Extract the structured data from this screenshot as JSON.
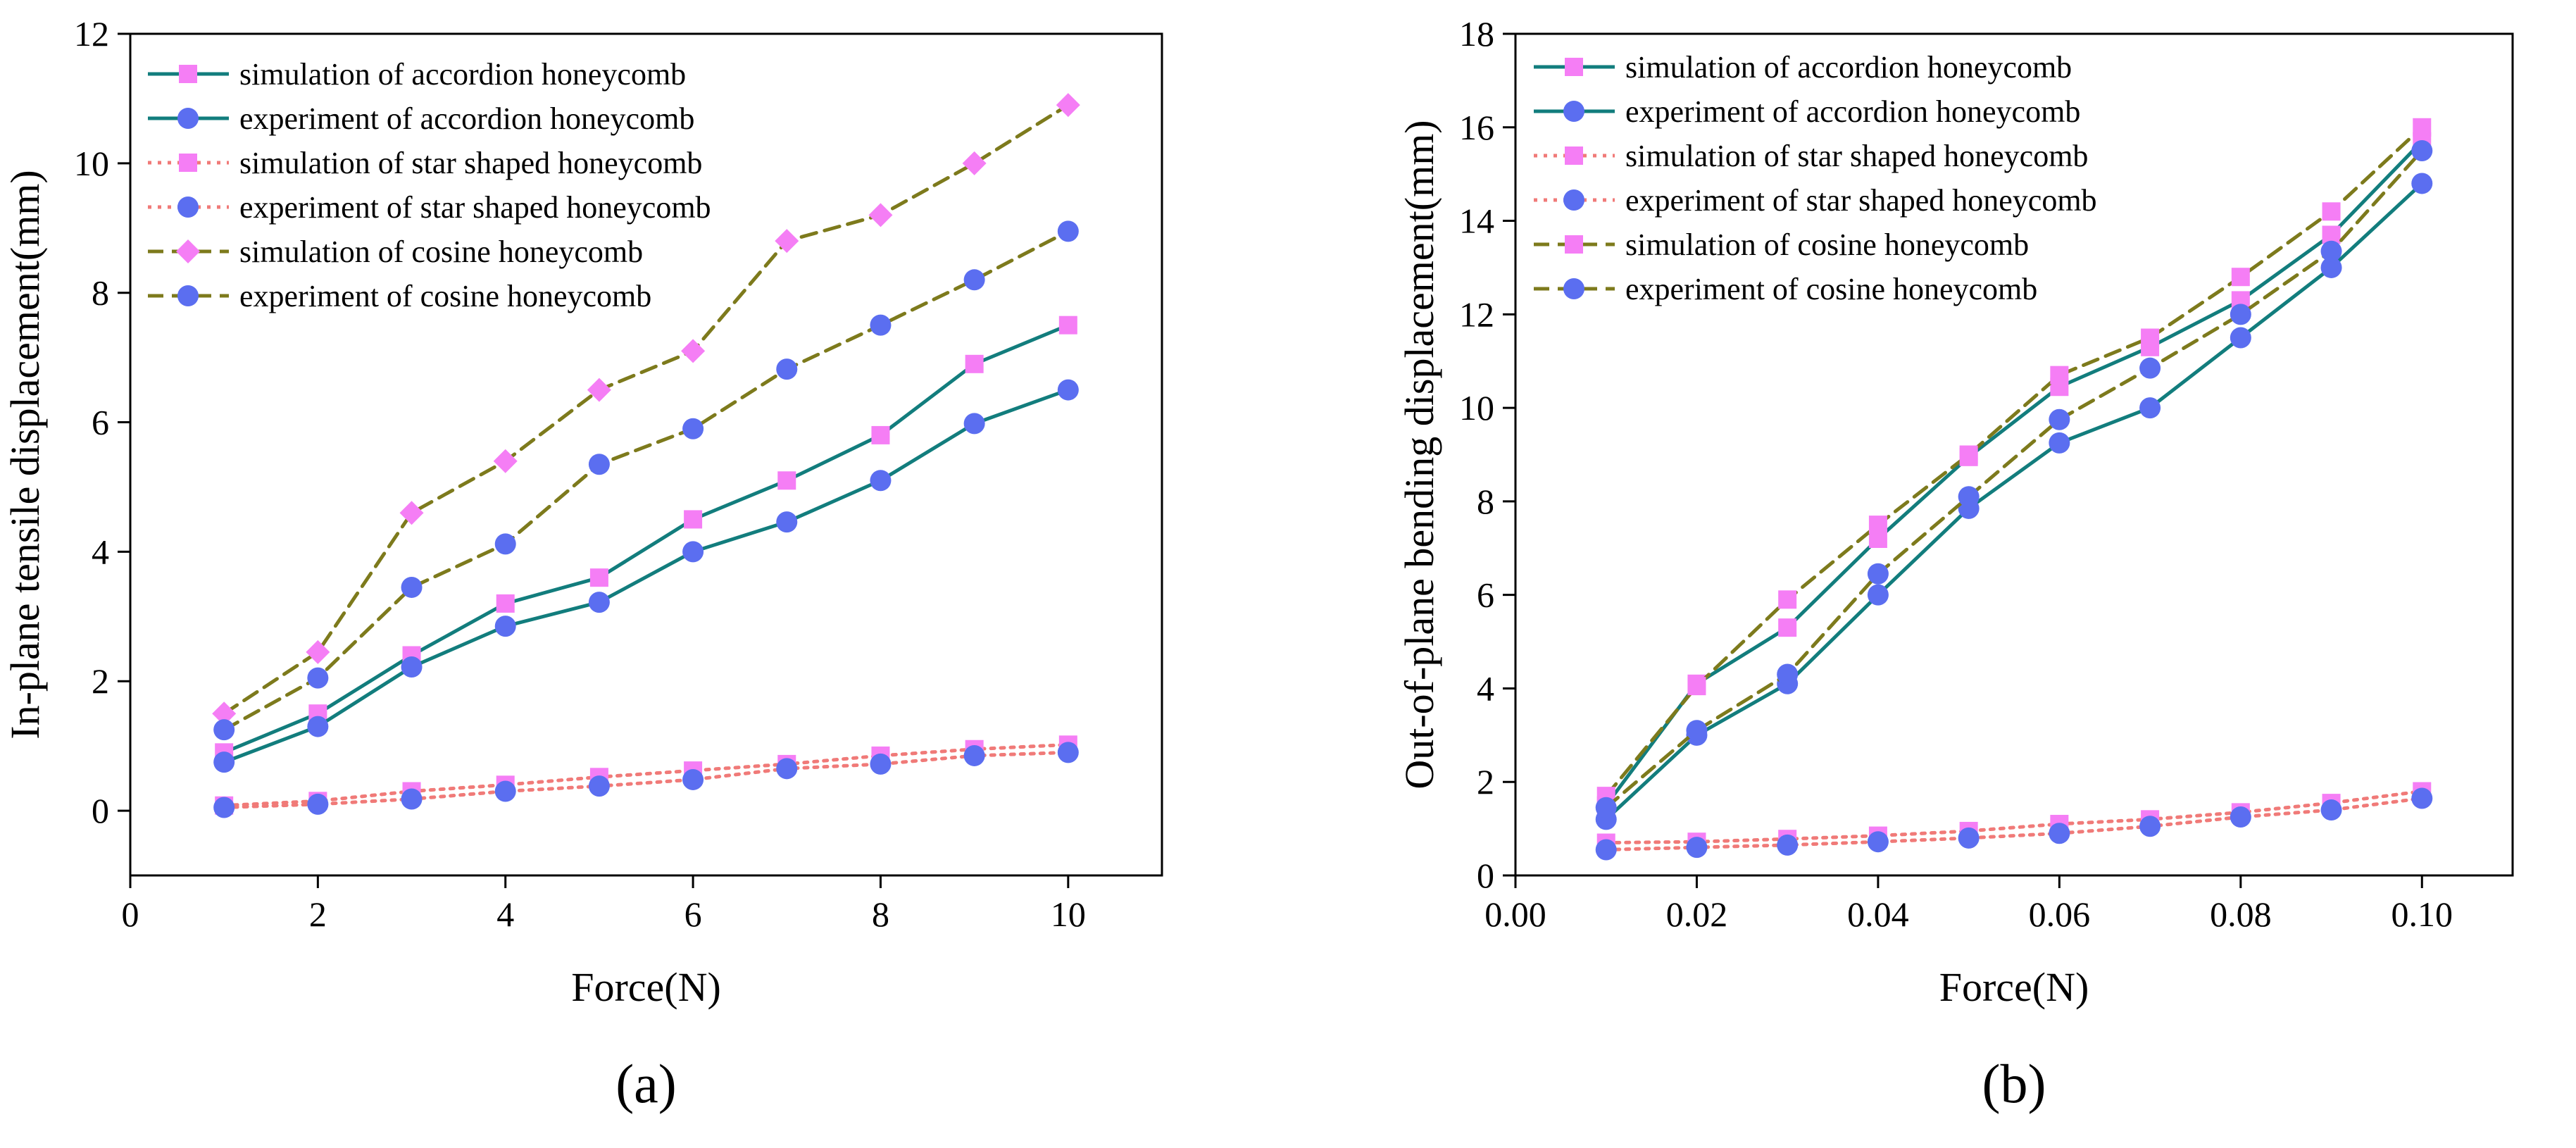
{
  "chart_data": [
    {
      "type": "line",
      "panel_label": "(a)",
      "xlabel": "Force(N)",
      "ylabel": "In-plane tensile displacement(mm)",
      "xlim": [
        0,
        11
      ],
      "ylim": [
        -1,
        12
      ],
      "xticks": [
        0,
        2,
        4,
        6,
        8,
        10
      ],
      "yticks": [
        0,
        2,
        4,
        6,
        8,
        10,
        12
      ],
      "xtick_decimals": 0,
      "ytick_decimals": 0,
      "grid": false,
      "legend_position": "top-left",
      "x": [
        1,
        2,
        3,
        4,
        5,
        6,
        7,
        8,
        9,
        10
      ],
      "series": [
        {
          "name": "simulation of accordion honeycomb",
          "color": "#127d7d",
          "line": "solid",
          "marker": "square",
          "marker_color": "#f57ef5",
          "values": [
            0.9,
            1.5,
            2.4,
            3.2,
            3.6,
            4.5,
            5.1,
            5.8,
            6.9,
            7.5
          ]
        },
        {
          "name": "experiment of accordion honeycomb",
          "color": "#127d7d",
          "line": "solid",
          "marker": "circle",
          "marker_color": "#5b6ef0",
          "values": [
            0.75,
            1.3,
            2.22,
            2.85,
            3.22,
            4.0,
            4.46,
            5.1,
            5.98,
            6.5
          ]
        },
        {
          "name": "simulation of star shaped honeycomb",
          "color": "#f07a78",
          "line": "dotted",
          "marker": "square",
          "marker_color": "#f57ef5",
          "values": [
            0.08,
            0.15,
            0.3,
            0.4,
            0.52,
            0.62,
            0.72,
            0.85,
            0.95,
            1.02
          ]
        },
        {
          "name": "experiment of star shaped honeycomb",
          "color": "#f07a78",
          "line": "dotted",
          "marker": "circle",
          "marker_color": "#5b6ef0",
          "values": [
            0.05,
            0.1,
            0.18,
            0.3,
            0.38,
            0.48,
            0.65,
            0.72,
            0.85,
            0.9
          ]
        },
        {
          "name": "simulation of cosine honeycomb",
          "color": "#7d7a1c",
          "line": "dashed",
          "marker": "diamond",
          "marker_color": "#f57ef5",
          "values": [
            1.5,
            2.45,
            4.6,
            5.4,
            6.5,
            7.1,
            8.8,
            9.2,
            10.0,
            10.9
          ]
        },
        {
          "name": "experiment of cosine honeycomb",
          "color": "#7d7a1c",
          "line": "dashed",
          "marker": "circle",
          "marker_color": "#5b6ef0",
          "values": [
            1.25,
            2.05,
            3.45,
            4.12,
            5.35,
            5.9,
            6.82,
            7.5,
            8.2,
            8.95
          ]
        }
      ]
    },
    {
      "type": "line",
      "panel_label": "(b)",
      "xlabel": "Force(N)",
      "ylabel": "Out-of-plane bending displacement(mm)",
      "xlim": [
        0,
        0.11
      ],
      "ylim": [
        0,
        18
      ],
      "xticks": [
        0,
        0.02,
        0.04,
        0.06,
        0.08,
        0.1
      ],
      "yticks": [
        0,
        2,
        4,
        6,
        8,
        10,
        12,
        14,
        16,
        18
      ],
      "xtick_decimals": 2,
      "ytick_decimals": 0,
      "grid": false,
      "legend_position": "top-left",
      "x": [
        0.01,
        0.02,
        0.03,
        0.04,
        0.05,
        0.06,
        0.07,
        0.08,
        0.09,
        0.1
      ],
      "series": [
        {
          "name": "simulation of accordion honeycomb",
          "color": "#127d7d",
          "line": "solid",
          "marker": "square",
          "marker_color": "#f57ef5",
          "values": [
            1.5,
            4.1,
            5.3,
            7.2,
            8.95,
            10.45,
            11.3,
            12.3,
            13.7,
            15.7
          ]
        },
        {
          "name": "experiment of accordion honeycomb",
          "color": "#127d7d",
          "line": "solid",
          "marker": "circle",
          "marker_color": "#5b6ef0",
          "values": [
            1.2,
            3.0,
            4.1,
            6.0,
            7.85,
            9.25,
            10.0,
            11.5,
            13.0,
            14.8
          ]
        },
        {
          "name": "simulation of star shaped honeycomb",
          "color": "#f07a78",
          "line": "dotted",
          "marker": "square",
          "marker_color": "#f57ef5",
          "values": [
            0.7,
            0.72,
            0.78,
            0.85,
            0.95,
            1.1,
            1.2,
            1.35,
            1.55,
            1.8
          ]
        },
        {
          "name": "experiment of star shaped honeycomb",
          "color": "#f07a78",
          "line": "dotted",
          "marker": "circle",
          "marker_color": "#5b6ef0",
          "values": [
            0.55,
            0.6,
            0.65,
            0.72,
            0.8,
            0.9,
            1.05,
            1.25,
            1.4,
            1.65
          ]
        },
        {
          "name": "simulation of cosine honeycomb",
          "color": "#7d7a1c",
          "line": "dashed",
          "marker": "square",
          "marker_color": "#f57ef5",
          "values": [
            1.7,
            4.05,
            5.9,
            7.5,
            9.0,
            10.7,
            11.5,
            12.8,
            14.2,
            16.0
          ]
        },
        {
          "name": "experiment of cosine honeycomb",
          "color": "#7d7a1c",
          "line": "dashed",
          "marker": "circle",
          "marker_color": "#5b6ef0",
          "values": [
            1.45,
            3.1,
            4.3,
            6.45,
            8.1,
            9.75,
            10.85,
            12.0,
            13.35,
            15.5
          ]
        }
      ]
    }
  ]
}
